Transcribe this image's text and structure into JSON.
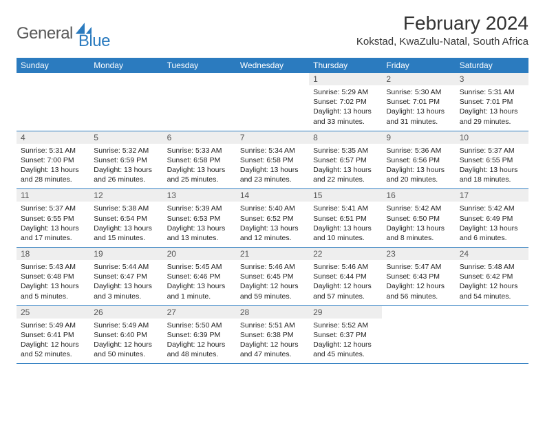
{
  "logo": {
    "text1": "General",
    "text2": "Blue"
  },
  "title": "February 2024",
  "location": "Kokstad, KwaZulu-Natal, South Africa",
  "colors": {
    "header_bg": "#2b7bbf",
    "header_text": "#ffffff",
    "daynum_bg": "#eeeeee",
    "row_border": "#2b7bbf",
    "logo_gray": "#5a5a5a",
    "logo_blue": "#2b7bbf"
  },
  "weekdays": [
    "Sunday",
    "Monday",
    "Tuesday",
    "Wednesday",
    "Thursday",
    "Friday",
    "Saturday"
  ],
  "weeks": [
    [
      null,
      null,
      null,
      null,
      {
        "n": "1",
        "sr": "5:29 AM",
        "ss": "7:02 PM",
        "dl": "13 hours and 33 minutes."
      },
      {
        "n": "2",
        "sr": "5:30 AM",
        "ss": "7:01 PM",
        "dl": "13 hours and 31 minutes."
      },
      {
        "n": "3",
        "sr": "5:31 AM",
        "ss": "7:01 PM",
        "dl": "13 hours and 29 minutes."
      }
    ],
    [
      {
        "n": "4",
        "sr": "5:31 AM",
        "ss": "7:00 PM",
        "dl": "13 hours and 28 minutes."
      },
      {
        "n": "5",
        "sr": "5:32 AM",
        "ss": "6:59 PM",
        "dl": "13 hours and 26 minutes."
      },
      {
        "n": "6",
        "sr": "5:33 AM",
        "ss": "6:58 PM",
        "dl": "13 hours and 25 minutes."
      },
      {
        "n": "7",
        "sr": "5:34 AM",
        "ss": "6:58 PM",
        "dl": "13 hours and 23 minutes."
      },
      {
        "n": "8",
        "sr": "5:35 AM",
        "ss": "6:57 PM",
        "dl": "13 hours and 22 minutes."
      },
      {
        "n": "9",
        "sr": "5:36 AM",
        "ss": "6:56 PM",
        "dl": "13 hours and 20 minutes."
      },
      {
        "n": "10",
        "sr": "5:37 AM",
        "ss": "6:55 PM",
        "dl": "13 hours and 18 minutes."
      }
    ],
    [
      {
        "n": "11",
        "sr": "5:37 AM",
        "ss": "6:55 PM",
        "dl": "13 hours and 17 minutes."
      },
      {
        "n": "12",
        "sr": "5:38 AM",
        "ss": "6:54 PM",
        "dl": "13 hours and 15 minutes."
      },
      {
        "n": "13",
        "sr": "5:39 AM",
        "ss": "6:53 PM",
        "dl": "13 hours and 13 minutes."
      },
      {
        "n": "14",
        "sr": "5:40 AM",
        "ss": "6:52 PM",
        "dl": "13 hours and 12 minutes."
      },
      {
        "n": "15",
        "sr": "5:41 AM",
        "ss": "6:51 PM",
        "dl": "13 hours and 10 minutes."
      },
      {
        "n": "16",
        "sr": "5:42 AM",
        "ss": "6:50 PM",
        "dl": "13 hours and 8 minutes."
      },
      {
        "n": "17",
        "sr": "5:42 AM",
        "ss": "6:49 PM",
        "dl": "13 hours and 6 minutes."
      }
    ],
    [
      {
        "n": "18",
        "sr": "5:43 AM",
        "ss": "6:48 PM",
        "dl": "13 hours and 5 minutes."
      },
      {
        "n": "19",
        "sr": "5:44 AM",
        "ss": "6:47 PM",
        "dl": "13 hours and 3 minutes."
      },
      {
        "n": "20",
        "sr": "5:45 AM",
        "ss": "6:46 PM",
        "dl": "13 hours and 1 minute."
      },
      {
        "n": "21",
        "sr": "5:46 AM",
        "ss": "6:45 PM",
        "dl": "12 hours and 59 minutes."
      },
      {
        "n": "22",
        "sr": "5:46 AM",
        "ss": "6:44 PM",
        "dl": "12 hours and 57 minutes."
      },
      {
        "n": "23",
        "sr": "5:47 AM",
        "ss": "6:43 PM",
        "dl": "12 hours and 56 minutes."
      },
      {
        "n": "24",
        "sr": "5:48 AM",
        "ss": "6:42 PM",
        "dl": "12 hours and 54 minutes."
      }
    ],
    [
      {
        "n": "25",
        "sr": "5:49 AM",
        "ss": "6:41 PM",
        "dl": "12 hours and 52 minutes."
      },
      {
        "n": "26",
        "sr": "5:49 AM",
        "ss": "6:40 PM",
        "dl": "12 hours and 50 minutes."
      },
      {
        "n": "27",
        "sr": "5:50 AM",
        "ss": "6:39 PM",
        "dl": "12 hours and 48 minutes."
      },
      {
        "n": "28",
        "sr": "5:51 AM",
        "ss": "6:38 PM",
        "dl": "12 hours and 47 minutes."
      },
      {
        "n": "29",
        "sr": "5:52 AM",
        "ss": "6:37 PM",
        "dl": "12 hours and 45 minutes."
      },
      null,
      null
    ]
  ],
  "labels": {
    "sunrise": "Sunrise:",
    "sunset": "Sunset:",
    "daylight": "Daylight:"
  }
}
